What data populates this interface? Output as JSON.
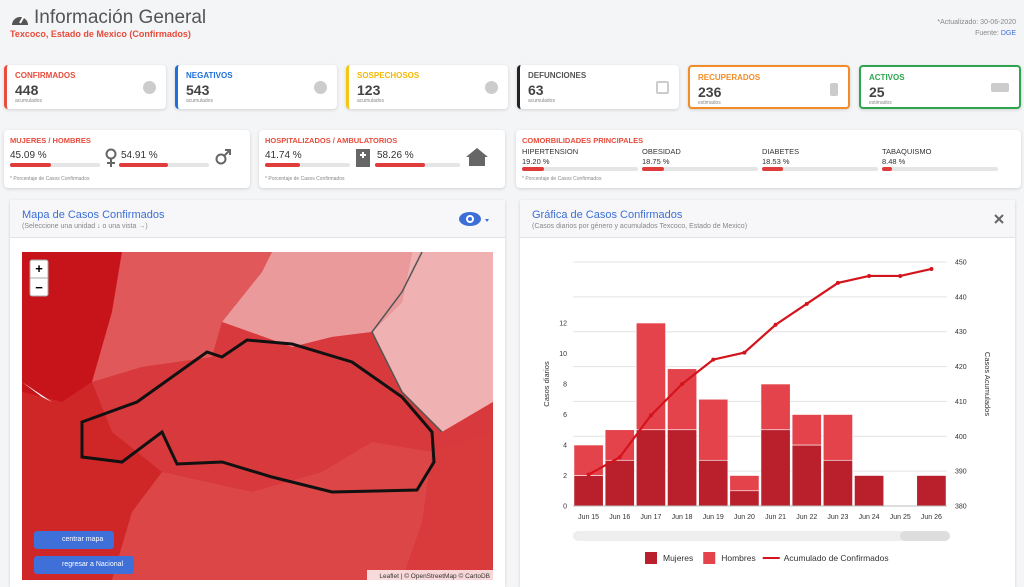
{
  "header": {
    "title": "Información General",
    "subtitle": "Texcoco, Estado de Mexico (Confirmados)",
    "updated": "*Actualizado: 30-06-2020",
    "source_label": "Fuente:",
    "source": "DGE"
  },
  "cards": [
    {
      "label": "CONFIRMADOS",
      "value": 448,
      "note": "acumulados"
    },
    {
      "label": "NEGATIVOS",
      "value": 543,
      "note": "acumulados"
    },
    {
      "label": "SOSPECHOSOS",
      "value": 123,
      "note": "acumulados"
    },
    {
      "label": "DEFUNCIONES",
      "value": 63,
      "note": "acumulados"
    },
    {
      "label": "RECUPERADOS",
      "value": 236,
      "note": "estimados"
    },
    {
      "label": "ACTIVOS",
      "value": 25,
      "note": "estimados"
    }
  ],
  "gender": {
    "title": "MUJERES / HOMBRES",
    "women": {
      "value": 45.09,
      "label": "45.09 %"
    },
    "men": {
      "value": 54.91,
      "label": "54.91 %"
    },
    "note": "* Porcentaje de Casos Confirmados"
  },
  "hospital": {
    "title": "HOSPITALIZADOS / AMBULATORIOS",
    "hospitalized": {
      "value": 41.74,
      "label": "41.74 %"
    },
    "ambulatory": {
      "value": 58.26,
      "label": "58.26 %"
    },
    "note": "* Porcentaje de Casos Confirmados"
  },
  "comorbidities": {
    "title": "COMORBILIDADES PRINCIPALES",
    "items": [
      {
        "name": "HIPERTENSION",
        "value": 19.2,
        "label": "19.20 %"
      },
      {
        "name": "OBESIDAD",
        "value": 18.75,
        "label": "18.75 %"
      },
      {
        "name": "DIABETES",
        "value": 18.53,
        "label": "18.53 %"
      },
      {
        "name": "TABAQUISMO",
        "value": 8.48,
        "label": "8.48 %"
      }
    ],
    "note": "* Porcentaje de Casos Confirmados"
  },
  "map": {
    "title": "Mapa de Casos Confirmados",
    "subtitle": "(Seleccione una unidad ↓ o una vista →)",
    "zoom_in": "+",
    "zoom_out": "−",
    "center_button": "centrar mapa",
    "back_button": "regresar a Nacional",
    "attribution": "Leaflet | © OpenStreetMap © CartoDB"
  },
  "chart_data": {
    "type": "bar",
    "stacked": true,
    "title": "Gráfica de Casos Confirmados",
    "subtitle": "(Casos diarios por género y acumulados Texcoco, Estado de Mexico)",
    "y_label": "Casos diarios",
    "y2_label": "Casos Acumulados",
    "categories": [
      "Jun 15",
      "Jun 16",
      "Jun 17",
      "Jun 18",
      "Jun 19",
      "Jun 20",
      "Jun 21",
      "Jun 22",
      "Jun 23",
      "Jun 24",
      "Jun 25",
      "Jun 26"
    ],
    "series": [
      {
        "name": "Mujeres",
        "color": "#b9202c",
        "values": [
          2,
          3,
          5,
          5,
          3,
          1,
          5,
          4,
          3,
          2,
          0,
          2
        ]
      },
      {
        "name": "Hombres",
        "color": "#e5434c",
        "values": [
          2,
          2,
          7,
          4,
          4,
          1,
          3,
          2,
          3,
          0,
          0,
          0
        ]
      },
      {
        "name": "Acumulado de Confirmados",
        "type": "line",
        "axis": "y2",
        "color": "#d4141c",
        "values": [
          389,
          394,
          406,
          415,
          422,
          424,
          432,
          438,
          444,
          446,
          446,
          448
        ]
      }
    ],
    "ylim": [
      0,
      16
    ],
    "yticks": [
      0,
      2,
      4,
      6,
      8,
      10,
      12
    ],
    "y2lim": [
      380,
      450
    ],
    "y2ticks": [
      380,
      390,
      400,
      410,
      420,
      430,
      440,
      450
    ],
    "grid": true
  }
}
